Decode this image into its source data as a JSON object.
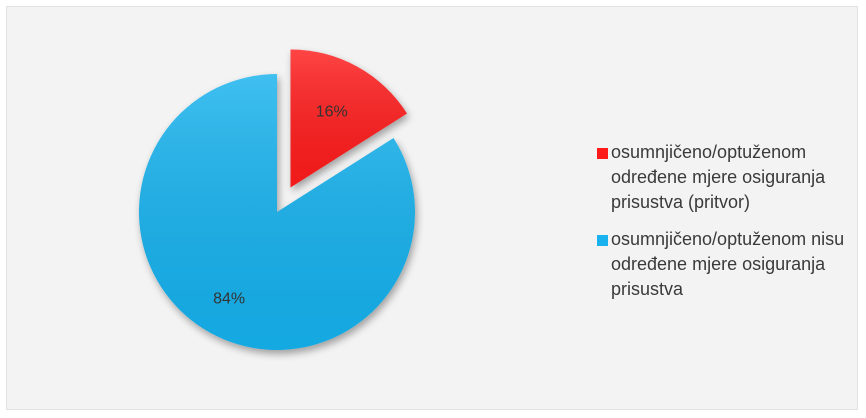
{
  "chart_data": {
    "type": "pie",
    "title": "",
    "legend_position": "right",
    "slices": [
      {
        "name": "osumnjičeno/optuženom određene mjere osiguranja prisustva (pritvor)",
        "value": 16,
        "label": "16%",
        "color": "#ff1a1a",
        "exploded": true
      },
      {
        "name": "osumnjičeno/optuženom nisu određene mjere osiguranja prisustva",
        "value": 84,
        "label": "84%",
        "color": "#19b2ee",
        "exploded": false
      }
    ]
  }
}
